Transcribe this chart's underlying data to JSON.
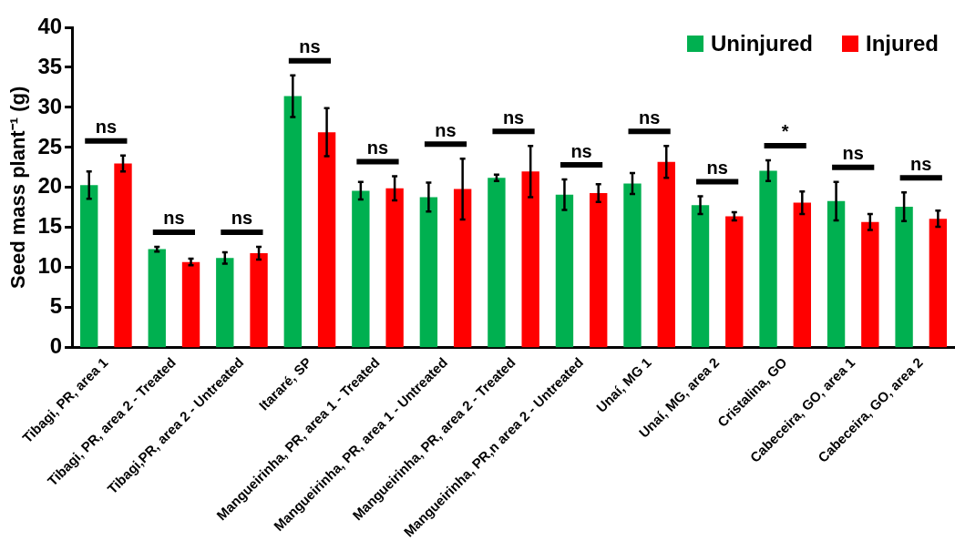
{
  "chart_data": {
    "type": "bar",
    "ylabel": "Seed mass plant⁻¹ (g)",
    "categories": [
      "Tibagi, PR, area 1",
      "Tibagi, PR, area 2 - Treated",
      "Tibagi,PR, area 2 - Untreated",
      "Itararé, SP",
      "Mangueirinha, PR, area 1 - Treated",
      "Mangueirinha, PR, area 1 - Untreated",
      "Mangueirinha, PR, area 2 - Treated",
      "Mangueirinha, PR,n area 2 - Untreated",
      "Unaí, MG 1",
      "Unaí, MG, area 2",
      "Cristalina, GO",
      "Cabeceira, GO, area 1",
      "Cabeceira, GO, area 2"
    ],
    "series": [
      {
        "name": "Uninjured",
        "color": "#00b050",
        "values": [
          20.3,
          12.3,
          11.2,
          31.4,
          19.6,
          18.8,
          21.2,
          19.1,
          20.5,
          17.8,
          22.1,
          18.3,
          17.6
        ],
        "errors": [
          1.7,
          0.3,
          0.7,
          2.6,
          1.1,
          1.8,
          0.4,
          1.9,
          1.3,
          1.1,
          1.3,
          2.4,
          1.8
        ]
      },
      {
        "name": "Injured",
        "color": "#ff0000",
        "values": [
          23.0,
          10.7,
          11.8,
          26.9,
          19.9,
          19.8,
          22.0,
          19.3,
          23.2,
          16.4,
          18.1,
          15.7,
          16.1
        ],
        "errors": [
          1.0,
          0.4,
          0.8,
          3.0,
          1.5,
          3.8,
          3.2,
          1.1,
          2.0,
          0.5,
          1.4,
          1.0,
          1.0
        ]
      }
    ],
    "ylim": [
      0,
      40
    ],
    "yticks": [
      0,
      5,
      10,
      15,
      20,
      25,
      30,
      35,
      40
    ],
    "grid": false,
    "legend": "top right",
    "annotations": [
      "ns",
      "ns",
      "ns",
      "ns",
      "ns",
      "ns",
      "ns",
      "ns",
      "ns",
      "ns",
      "*",
      "ns",
      "ns"
    ]
  }
}
